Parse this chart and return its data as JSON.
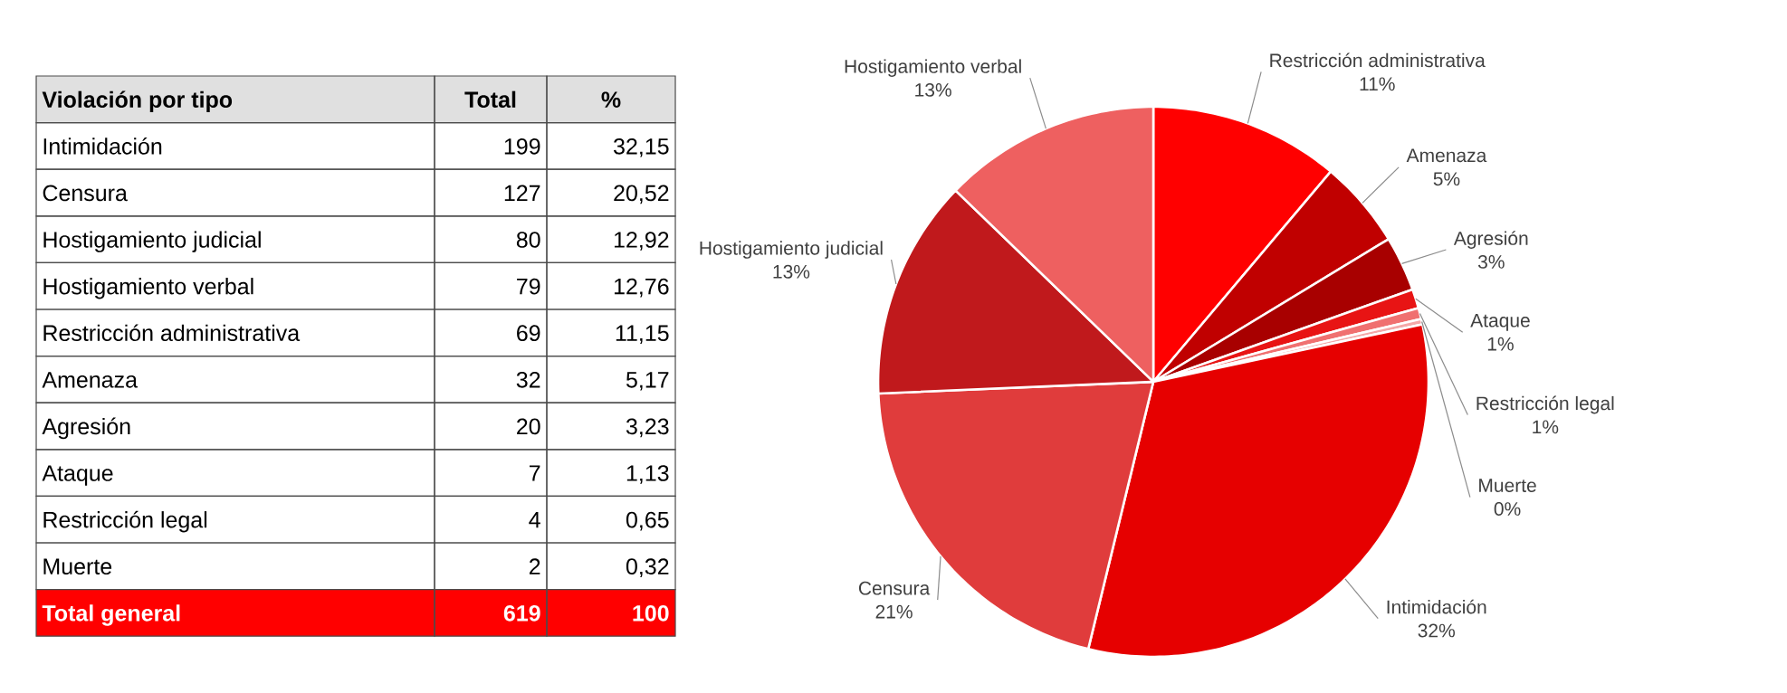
{
  "chart_data": [
    {
      "type": "other",
      "annotations": [
        "Violación por tipo",
        "Total",
        "%",
        "Intimidación",
        "199",
        "32,15",
        "Censura",
        "127",
        "20,52",
        "Hostigamiento judicial",
        "80",
        "12,92",
        "Hostigamiento verbal",
        "79",
        "12,76",
        "Restricción administrativa",
        "69",
        "11,15",
        "Amenaza",
        "32",
        "5,17",
        "Agresión",
        "20",
        "3,23",
        "Ataque",
        "7",
        "1,13",
        "Restricción legal",
        "4",
        "0,65",
        "Muerte",
        "2",
        "0,32",
        "Total general",
        "619",
        "100"
      ]
    },
    {
      "type": "pie",
      "categories": [
        "Restricción administrativa",
        "Amenaza",
        "Agresión",
        "Ataque",
        "Restricción legal",
        "Muerte",
        "Intimidación",
        "Censura",
        "Hostigamiento judicial",
        "Hostigamiento verbal"
      ],
      "values": [
        11.15,
        5.17,
        3.23,
        1.13,
        0.65,
        0.32,
        32.15,
        20.52,
        12.92,
        12.76
      ],
      "value_labels": [
        "11%",
        "5%",
        "3%",
        "1%",
        "1%",
        "0%",
        "32%",
        "21%",
        "13%",
        "13%"
      ],
      "colors": [
        "#ff0000",
        "#c00000",
        "#a80000",
        "#e81414",
        "#f07070",
        "#f4a8a8",
        "#e60000",
        "#e03c3c",
        "#c0191c",
        "#ee6060"
      ]
    }
  ]
}
